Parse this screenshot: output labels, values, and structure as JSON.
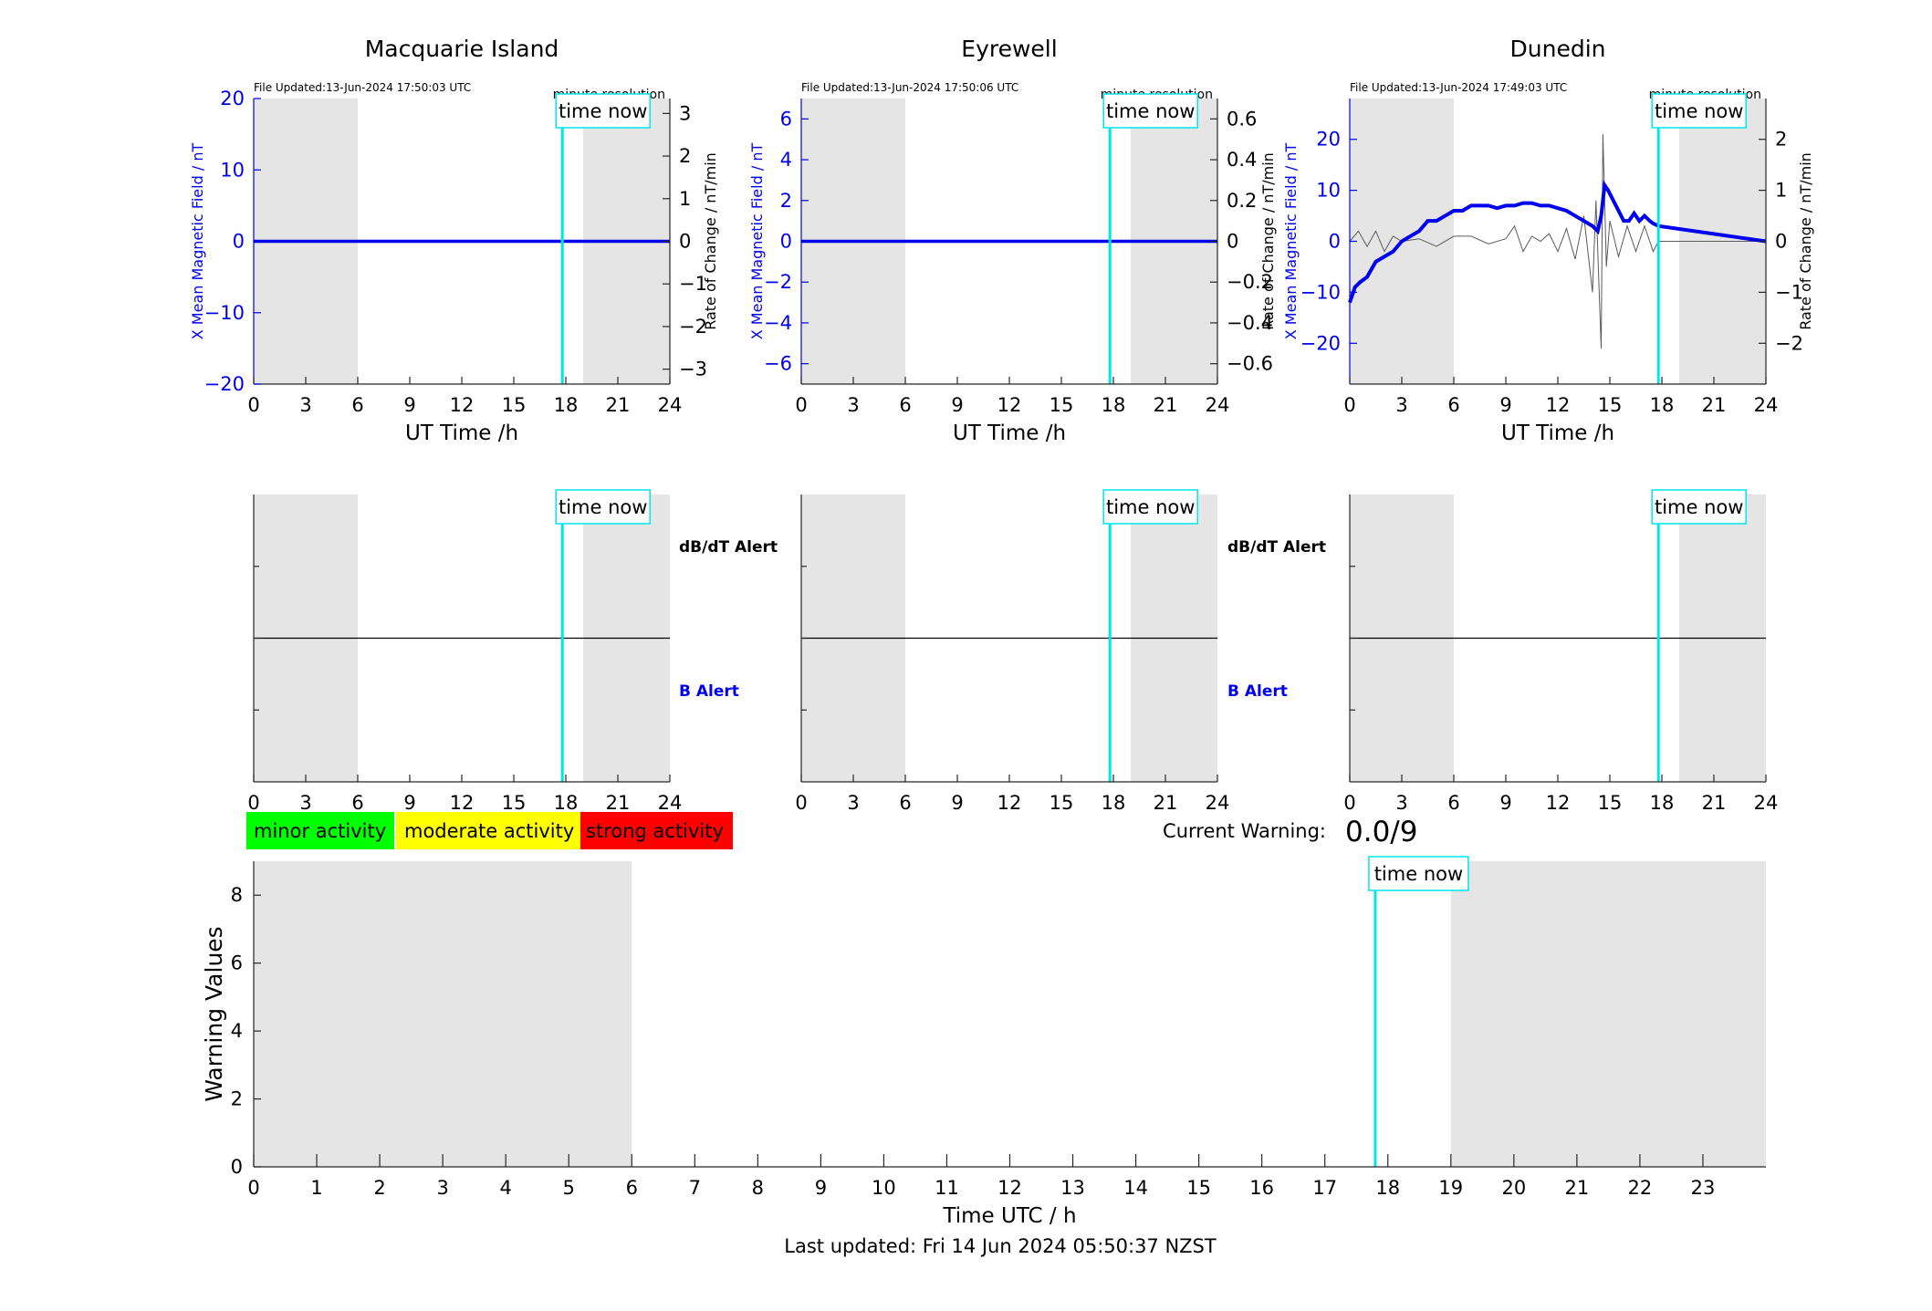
{
  "colors": {
    "background": "#ffffff",
    "night_shade": "#e5e5e5",
    "field_line": "#0000ee",
    "rate_line": "#5a5a5a",
    "time_now": "#00e5ee",
    "axis": "#262626",
    "minor": "#00ff00",
    "moderate": "#ffff00",
    "strong": "#ff0000"
  },
  "labels": {
    "file_prefix": "File Updated:",
    "minute_resolution": "minute resolution",
    "time_now": "time now",
    "ut_time": "UT Time /h",
    "y_left": "X Mean Magnetic Field / nT",
    "y_right": "Rate of Change / nT/min",
    "db_alert": "dB/dT Alert",
    "b_alert": "B Alert",
    "time_utc": "Time UTC / h",
    "warning_values": "Warning Values",
    "current_warning_label": "Current Warning:",
    "current_warning_value": "0.0/9",
    "last_updated": "Last updated: Fri 14 Jun 2024 05:50:37 NZST"
  },
  "legend": [
    {
      "label": "minor activity",
      "color": "#00ff00"
    },
    {
      "label": "moderate activity",
      "color": "#ffff00"
    },
    {
      "label": "strong activity",
      "color": "#ff0000"
    }
  ],
  "chart_data": [
    {
      "type": "line",
      "station": "Macquarie Island",
      "file_updated": "13-Jun-2024 17:50:03 UTC",
      "xlim": [
        0,
        24
      ],
      "xticks": [
        0,
        3,
        6,
        9,
        12,
        15,
        18,
        21,
        24
      ],
      "ylim": [
        -20,
        20
      ],
      "yticks": [
        -20,
        -10,
        0,
        10,
        20
      ],
      "y2lim": [
        -3.35,
        3.35
      ],
      "y2ticks": [
        -3,
        -2,
        -1,
        0,
        1,
        2,
        3
      ],
      "y2tick_labels": [
        "-3",
        "-2",
        "-1",
        "0",
        "1",
        "2",
        "3"
      ],
      "shade": [
        [
          0,
          6
        ],
        [
          19,
          24
        ]
      ],
      "time_now": 17.8,
      "series": [
        {
          "role": "field",
          "x": [
            0,
            24
          ],
          "y": [
            0,
            0
          ]
        },
        {
          "role": "rate",
          "x": [
            0,
            24
          ],
          "y": [
            0,
            0
          ]
        }
      ]
    },
    {
      "type": "line",
      "station": "Eyrewell",
      "file_updated": "13-Jun-2024 17:50:06 UTC",
      "xlim": [
        0,
        24
      ],
      "xticks": [
        0,
        3,
        6,
        9,
        12,
        15,
        18,
        21,
        24
      ],
      "ylim": [
        -7,
        7
      ],
      "yticks": [
        -6,
        -4,
        -2,
        0,
        2,
        4,
        6
      ],
      "y2lim": [
        -0.7,
        0.7
      ],
      "y2ticks": [
        -0.6,
        -0.4,
        -0.2,
        0,
        0.2,
        0.4,
        0.6
      ],
      "y2tick_labels": [
        "-0.6",
        "-0.4",
        "-0.2",
        "0",
        "0.2",
        "0.4",
        "0.6"
      ],
      "shade": [
        [
          0,
          6
        ],
        [
          19,
          24
        ]
      ],
      "time_now": 17.8,
      "series": [
        {
          "role": "field",
          "x": [
            0,
            24
          ],
          "y": [
            0,
            0
          ]
        },
        {
          "role": "rate",
          "x": [
            0,
            24
          ],
          "y": [
            0,
            0
          ]
        }
      ]
    },
    {
      "type": "line",
      "station": "Dunedin",
      "file_updated": "13-Jun-2024 17:49:03 UTC",
      "xlim": [
        0,
        24
      ],
      "xticks": [
        0,
        3,
        6,
        9,
        12,
        15,
        18,
        21,
        24
      ],
      "ylim": [
        -28,
        28
      ],
      "yticks": [
        -20,
        -10,
        0,
        10,
        20
      ],
      "y2lim": [
        -2.8,
        2.8
      ],
      "y2ticks": [
        -2,
        -1,
        0,
        1,
        2
      ],
      "y2tick_labels": [
        "-2",
        "-1",
        "0",
        "1",
        "2"
      ],
      "shade": [
        [
          0,
          6
        ],
        [
          19,
          24
        ]
      ],
      "time_now": 17.8,
      "series": [
        {
          "role": "field",
          "x": [
            0,
            0.3,
            0.6,
            1.0,
            1.5,
            2.0,
            2.5,
            3.0,
            3.5,
            4.0,
            4.5,
            5.0,
            5.5,
            6.0,
            6.5,
            7.0,
            7.5,
            8.0,
            8.5,
            9.0,
            9.5,
            10.0,
            10.5,
            11.0,
            11.5,
            12.0,
            12.5,
            13.0,
            13.5,
            14.0,
            14.3,
            14.5,
            14.7,
            14.9,
            15.2,
            15.5,
            15.8,
            16.1,
            16.4,
            16.7,
            17.0,
            17.3,
            17.5,
            17.8,
            24.0
          ],
          "y": [
            -12,
            -9,
            -8,
            -7,
            -4,
            -3,
            -2,
            0,
            1,
            2,
            4,
            4,
            5,
            6,
            6,
            7,
            7,
            7,
            6.5,
            7,
            7,
            7.5,
            7.5,
            7,
            7,
            6.5,
            6,
            5,
            4,
            3,
            2,
            5,
            11,
            10,
            8,
            6,
            4,
            4,
            5.5,
            4,
            5,
            4,
            3.5,
            3,
            0
          ]
        },
        {
          "role": "rate",
          "x": [
            0,
            0.5,
            1.0,
            1.5,
            2.0,
            2.5,
            3.0,
            4.0,
            5.0,
            6.0,
            7.0,
            8.0,
            9.0,
            9.5,
            10.0,
            10.5,
            11.0,
            11.5,
            12.0,
            12.5,
            13.0,
            13.5,
            14.0,
            14.2,
            14.5,
            14.6,
            14.8,
            15.0,
            15.5,
            16.0,
            16.5,
            17.0,
            17.5,
            17.8,
            24.0
          ],
          "y": [
            0,
            0.2,
            -0.1,
            0.2,
            -0.2,
            0.1,
            0,
            0.05,
            -0.1,
            0.1,
            0.1,
            -0.05,
            0.05,
            0.3,
            -0.2,
            0.1,
            0,
            0.15,
            -0.2,
            0.25,
            -0.35,
            0.5,
            -1.0,
            0.8,
            -2.1,
            2.1,
            -0.5,
            0.4,
            -0.3,
            0.3,
            -0.2,
            0.3,
            -0.2,
            0,
            0
          ]
        }
      ]
    },
    {
      "type": "line",
      "role": "alert",
      "station": "Macquarie Island",
      "xlim": [
        0,
        24
      ],
      "xticks": [
        0,
        3,
        6,
        9,
        12,
        15,
        18,
        21,
        24
      ],
      "shade": [
        [
          0,
          6
        ],
        [
          19,
          24
        ]
      ],
      "time_now": 17.8,
      "series": [
        {
          "role": "divider",
          "x": [
            0,
            24
          ],
          "y": [
            0.5,
            0.5
          ]
        }
      ]
    },
    {
      "type": "line",
      "role": "alert",
      "station": "Eyrewell",
      "xlim": [
        0,
        24
      ],
      "xticks": [
        0,
        3,
        6,
        9,
        12,
        15,
        18,
        21,
        24
      ],
      "shade": [
        [
          0,
          6
        ],
        [
          19,
          24
        ]
      ],
      "time_now": 17.8,
      "series": [
        {
          "role": "divider",
          "x": [
            0,
            24
          ],
          "y": [
            0.5,
            0.5
          ]
        }
      ]
    },
    {
      "type": "line",
      "role": "alert",
      "station": "Dunedin",
      "xlim": [
        0,
        24
      ],
      "xticks": [
        0,
        3,
        6,
        9,
        12,
        15,
        18,
        21,
        24
      ],
      "shade": [
        [
          0,
          6
        ],
        [
          19,
          24
        ]
      ],
      "time_now": 17.8,
      "series": [
        {
          "role": "divider",
          "x": [
            0,
            24
          ],
          "y": [
            0.5,
            0.5
          ]
        }
      ]
    },
    {
      "type": "bar",
      "role": "warning",
      "xlabel": "Time UTC / h",
      "ylabel": "Warning Values",
      "xlim": [
        0,
        24
      ],
      "xticks": [
        0,
        1,
        2,
        3,
        4,
        5,
        6,
        7,
        8,
        9,
        10,
        11,
        12,
        13,
        14,
        15,
        16,
        17,
        18,
        19,
        20,
        21,
        22,
        23
      ],
      "ylim": [
        0,
        9
      ],
      "yticks": [
        0,
        2,
        4,
        6,
        8
      ],
      "shade": [
        [
          0,
          6
        ],
        [
          19,
          24
        ]
      ],
      "time_now": 17.8,
      "values": []
    }
  ]
}
